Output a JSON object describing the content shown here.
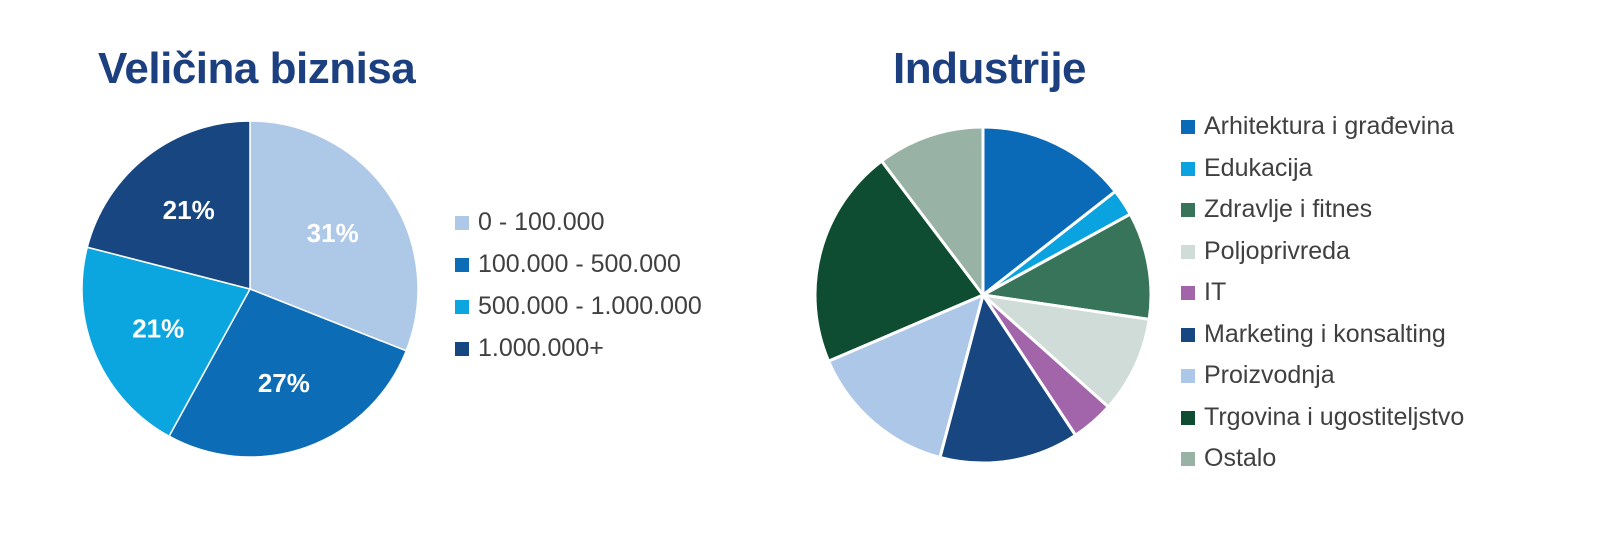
{
  "chart_data": [
    {
      "type": "pie",
      "title": "Veličina biznisa",
      "categories": [
        "0 - 100.000",
        "100.000 - 500.000",
        "500.000 - 1.000.000",
        "1.000.000+"
      ],
      "values": [
        31,
        27,
        21,
        21
      ],
      "data_labels": [
        "31%",
        "27%",
        "21%",
        "21%"
      ],
      "colors": [
        "#aec8e8",
        "#0c6cb5",
        "#0ba6e0",
        "#184680"
      ],
      "label_color": "#ffffff",
      "legend": "right",
      "start_angle": "12 o'clock",
      "direction": "clockwise"
    },
    {
      "type": "pie",
      "title": "Industrije",
      "categories": [
        "Arhitektura i građevina",
        "Edukacija",
        "Zdravlje i fitnes",
        "Poljoprivreda",
        "IT",
        "Marketing i konsalting",
        "Proizvodnja",
        "Trgovina i ugostiteljstvo",
        "Ostalo"
      ],
      "values": [
        14,
        2.5,
        10,
        9,
        4,
        13,
        14,
        20.5,
        10
      ],
      "colors": [
        "#0a6ab7",
        "#0aa3e0",
        "#387459",
        "#d0dcd7",
        "#a265a9",
        "#184680",
        "#adc7e8",
        "#0f4d32",
        "#98b3a5"
      ],
      "legend": "right",
      "start_angle": "12 o'clock",
      "direction": "clockwise"
    }
  ]
}
